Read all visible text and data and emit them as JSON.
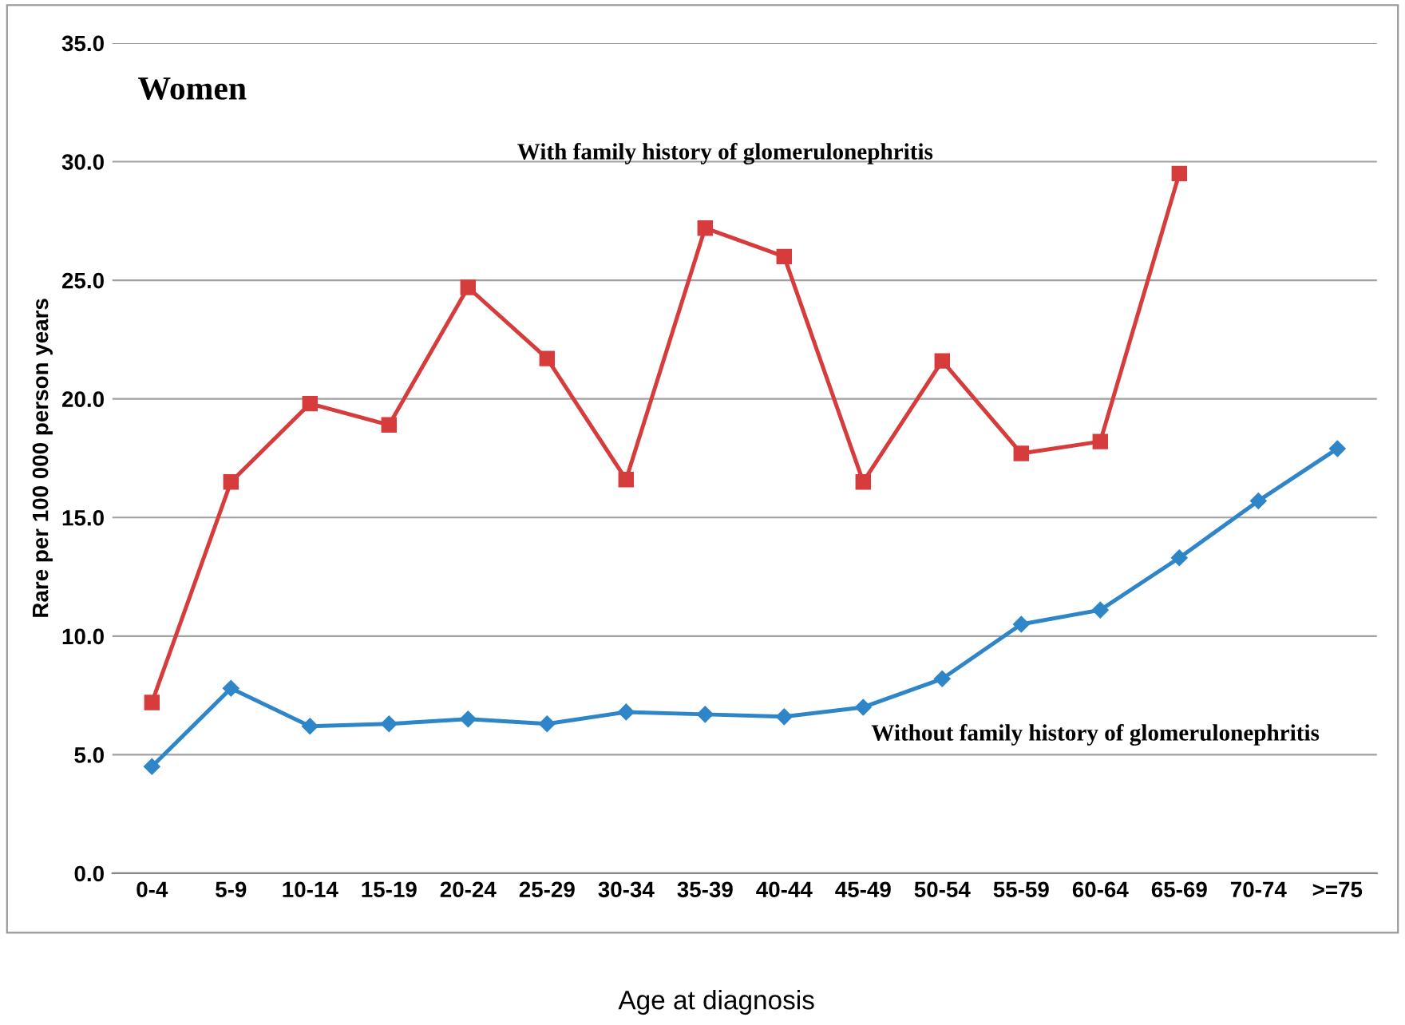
{
  "chart_data": {
    "type": "line",
    "title": "Women",
    "xlabel": "Age at diagnosis",
    "ylabel": "Rare per 100 000 person years",
    "categories": [
      "0-4",
      "5-9",
      "10-14",
      "15-19",
      "20-24",
      "25-29",
      "30-34",
      "35-39",
      "40-44",
      "45-49",
      "50-54",
      "55-59",
      "60-64",
      "65-69",
      "70-74",
      ">=75"
    ],
    "series": [
      {
        "name": "With family history of glomerulonephritis",
        "color": "#d63c3c",
        "marker": "square",
        "values": [
          7.2,
          16.5,
          19.8,
          18.9,
          24.7,
          21.7,
          16.6,
          27.2,
          26.0,
          16.5,
          21.6,
          17.7,
          18.2,
          29.5,
          null,
          null
        ]
      },
      {
        "name": "Without family history of glomerulonephritis",
        "color": "#2e86c8",
        "marker": "diamond",
        "values": [
          4.5,
          7.8,
          6.2,
          6.3,
          6.5,
          6.3,
          6.8,
          6.7,
          6.6,
          7.0,
          8.2,
          10.5,
          11.1,
          13.3,
          15.7,
          17.9
        ]
      }
    ],
    "ylim": [
      0,
      35
    ],
    "yticks": [
      {
        "value": 0,
        "label": "0.0"
      },
      {
        "value": 5,
        "label": "5.0"
      },
      {
        "value": 10,
        "label": "10.0"
      },
      {
        "value": 15,
        "label": "15.0"
      },
      {
        "value": 20,
        "label": "20.0"
      },
      {
        "value": 25,
        "label": "25.0"
      },
      {
        "value": 30,
        "label": "30.0"
      },
      {
        "value": 35,
        "label": "35.0"
      }
    ],
    "grid": "y",
    "legend": false
  }
}
